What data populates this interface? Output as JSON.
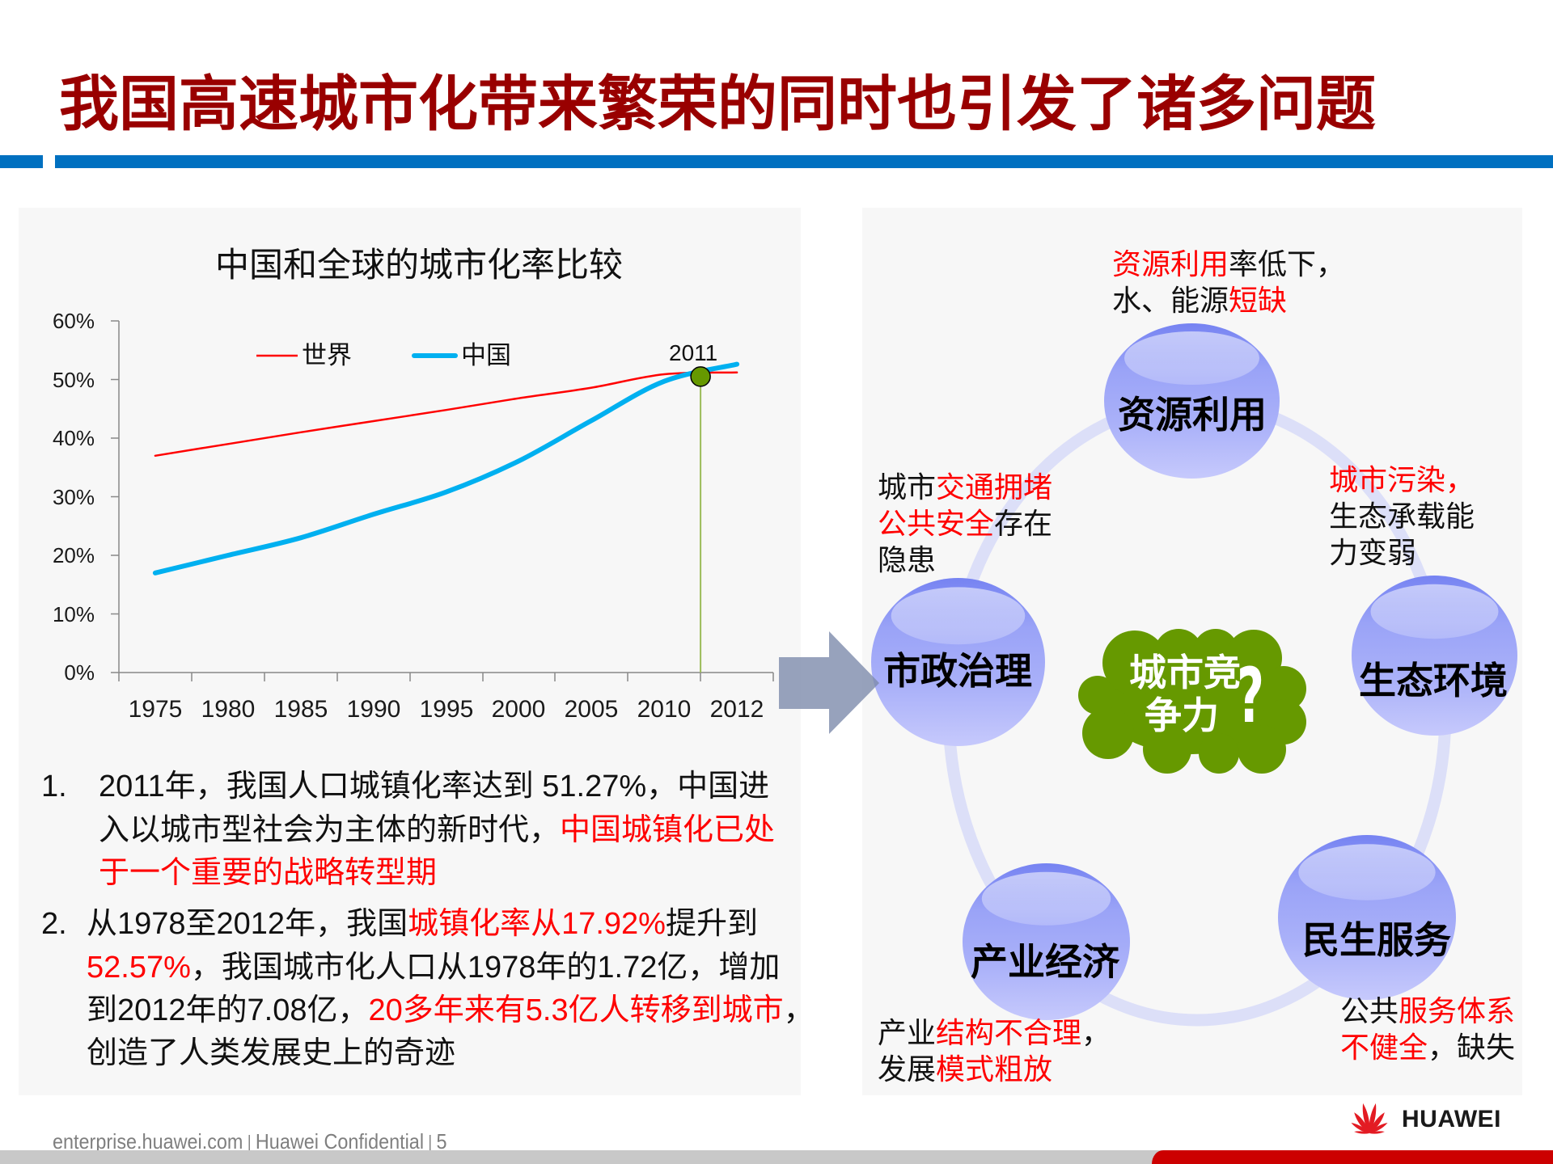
{
  "slide": {
    "title": "我国高速城市化带来繁荣的同时也引发了诸多问题",
    "colors": {
      "title": "#990000",
      "rule_blue": "#0070C0",
      "highlight_red": "#FF0000",
      "panel_background": "#F7F7F7",
      "bubble_blue": "#A3AAF8",
      "ring_lavender": "#DCDFF8",
      "cloud_green": "#669900",
      "arrow_gray_blue": "#97A2BC",
      "footer_red": "#CC0000"
    }
  },
  "left_panel": {
    "notes": [
      {
        "number": "1.",
        "lines": [
          [
            {
              "text": "2011年，我国人口城镇化率达到 51.27%，中国进",
              "highlight": false
            }
          ],
          [
            {
              "text": "入以城市型社会为主体的新时代，",
              "highlight": false
            },
            {
              "text": "中国城镇化已处",
              "highlight": true
            }
          ],
          [
            {
              "text": "于一个重要的战略转型期",
              "highlight": true
            }
          ]
        ]
      },
      {
        "number": "2.",
        "lines": [
          [
            {
              "text": "从1978至2012年，我国",
              "highlight": false
            },
            {
              "text": "城镇化率从17.92%",
              "highlight": true
            },
            {
              "text": "提升到",
              "highlight": false
            }
          ],
          [
            {
              "text": "52.57%",
              "highlight": true
            },
            {
              "text": "，我国城市化人口从1978年的1.72亿，增加",
              "highlight": false
            }
          ],
          [
            {
              "text": "到2012年的7.08亿，",
              "highlight": false
            },
            {
              "text": "20多年来有5.3亿人转移到城市",
              "highlight": true
            },
            {
              "text": "，",
              "highlight": false
            }
          ],
          [
            {
              "text": "创造了人类发展史上的奇迹",
              "highlight": false
            }
          ]
        ]
      }
    ]
  },
  "right_panel": {
    "center": {
      "line1": "城市竞",
      "line2": "争力",
      "mark": "?"
    },
    "nodes": [
      {
        "label": "资源利用",
        "note": [
          [
            {
              "text": "资源利用",
              "highlight": true
            },
            {
              "text": "率低下，",
              "highlight": false
            }
          ],
          [
            {
              "text": "水、能源",
              "highlight": false
            },
            {
              "text": "短缺",
              "highlight": true
            }
          ]
        ]
      },
      {
        "label": "生态环境",
        "note": [
          [
            {
              "text": "城市污染，",
              "highlight": true
            }
          ],
          [
            {
              "text": "生态承载能",
              "highlight": false
            }
          ],
          [
            {
              "text": "力变弱",
              "highlight": false
            }
          ]
        ]
      },
      {
        "label": "民生服务",
        "note": [
          [
            {
              "text": "公共",
              "highlight": false
            },
            {
              "text": "服务体系",
              "highlight": true
            }
          ],
          [
            {
              "text": "不健全",
              "highlight": true
            },
            {
              "text": "，缺失",
              "highlight": false
            }
          ]
        ]
      },
      {
        "label": "产业经济",
        "note": [
          [
            {
              "text": "产业",
              "highlight": false
            },
            {
              "text": "结构不合理",
              "highlight": true
            },
            {
              "text": "，",
              "highlight": false
            }
          ],
          [
            {
              "text": "发展",
              "highlight": false
            },
            {
              "text": "模式粗放",
              "highlight": true
            }
          ]
        ]
      },
      {
        "label": "市政治理",
        "note": [
          [
            {
              "text": "城市",
              "highlight": false
            },
            {
              "text": "交通拥堵",
              "highlight": true
            }
          ],
          [
            {
              "text": "公共安全",
              "highlight": true
            },
            {
              "text": "存在",
              "highlight": false
            }
          ],
          [
            {
              "text": "隐患",
              "highlight": false
            }
          ]
        ]
      }
    ]
  },
  "footer": {
    "site": "enterprise.huawei.com",
    "separator": "|",
    "classification": "Huawei Confidential",
    "page": "5",
    "brand": "HUAWEI"
  },
  "chart_data": {
    "type": "line",
    "title": "中国和全球的城市化率比较",
    "xlabel": "",
    "ylabel": "",
    "categories": [
      "1975",
      "1980",
      "1985",
      "1990",
      "1995",
      "2000",
      "2005",
      "2010",
      "2012"
    ],
    "series": [
      {
        "name": "世界",
        "color": "#FF0000",
        "values": [
          37.0,
          39.0,
          41.0,
          42.9,
          44.8,
          46.8,
          48.6,
          50.9,
          51.2
        ]
      },
      {
        "name": "中国",
        "color": "#00B0F0",
        "values": [
          17.0,
          20.0,
          23.0,
          27.0,
          30.8,
          36.1,
          43.0,
          49.7,
          52.6
        ]
      }
    ],
    "ylim": [
      0,
      60
    ],
    "y_ticks": [
      "0%",
      "10%",
      "20%",
      "30%",
      "40%",
      "50%",
      "60%"
    ],
    "y_unit": "%",
    "grid": false,
    "smoothed": true,
    "legend_position": "top-left, inside plot",
    "annotations": [
      {
        "label": "2011",
        "year": 2011,
        "value": 50.5,
        "marker_color": "#669900",
        "line_color": "#9BBB59"
      }
    ]
  }
}
